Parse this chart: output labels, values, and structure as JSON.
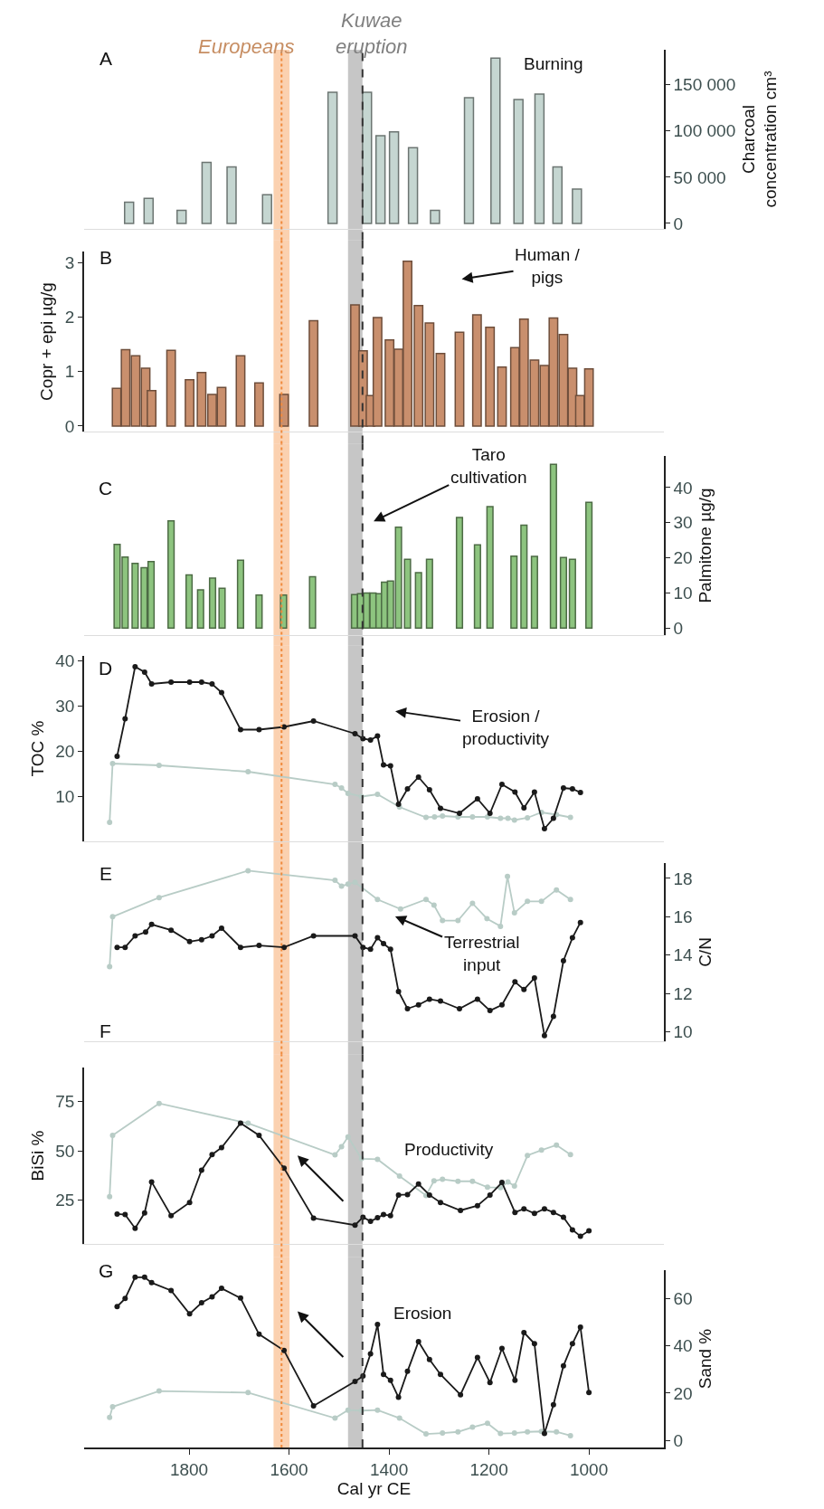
{
  "chart_data": [
    {
      "type": "bar",
      "ylabel": null,
      "y2label": "Charcoal\nconcentration cm³",
      "xlim": [
        2010,
        850
      ],
      "xticks": [
        1800,
        1600,
        1400,
        1200,
        1000
      ],
      "tick_labels": "y",
      "y2lim": [
        -6000,
        188000
      ],
      "y2ticks": [
        0,
        {
          "value": 50000,
          "label": "50 000"
        },
        {
          "value": 100000,
          "label": "100 000"
        },
        {
          "value": 150000,
          "label": "150 000"
        }
      ],
      "series": [
        {
          "axis": "y2",
          "color": "#c5d6d1",
          "x": [
            1920,
            1881,
            1815,
            1765,
            1715,
            1644,
            1513,
            1444,
            1417,
            1390,
            1352,
            1308,
            1240,
            1187,
            1141,
            1099,
            1063,
            1024
          ],
          "values": [
            23000,
            27000,
            14000,
            66000,
            61000,
            31000,
            142000,
            142000,
            95000,
            99000,
            82000,
            14000,
            136000,
            179000,
            134000,
            140000,
            61000,
            37000
          ]
        }
      ],
      "annotations": [
        "A",
        "Burning"
      ],
      "bands": [
        {
          "axis": "x",
          "from": 1631,
          "to": 1599,
          "color": "#f9b27c",
          "label": "Europeans"
        },
        {
          "axis": "x",
          "from": 1482,
          "to": 1453,
          "color": "#a0a0a0",
          "label": "Kuwae\neruption"
        }
      ],
      "ref_lines": [
        {
          "axis": "x",
          "value": 1615,
          "color": "#f08a3c",
          "line_style": "dotted"
        },
        {
          "axis": "x",
          "value": 1453,
          "color": "#333333",
          "line_style": "dashed"
        }
      ]
    },
    {
      "type": "bar",
      "ylabel": "Copr + epi µg/g",
      "xlim": [
        2010,
        850
      ],
      "xticks": [
        1800,
        1600,
        1400,
        1200,
        1000
      ],
      "tick_labels": "y",
      "ylim": [
        -0.1,
        3.2
      ],
      "yticks": [
        0,
        1,
        2,
        3
      ],
      "series": [
        {
          "color": "#c98f6d",
          "x": [
            1945,
            1927,
            1907,
            1887,
            1875,
            1836,
            1799,
            1775,
            1754,
            1735,
            1697,
            1660,
            1610,
            1551,
            1468,
            1452,
            1437,
            1423,
            1399,
            1381,
            1363,
            1341,
            1319,
            1297,
            1259,
            1224,
            1198,
            1174,
            1148,
            1130,
            1109,
            1089,
            1071,
            1051,
            1033,
            1018,
            1000
          ],
          "values": [
            0.69,
            1.4,
            1.29,
            1.06,
            0.65,
            1.39,
            0.85,
            0.98,
            0.58,
            0.71,
            1.29,
            0.79,
            0.58,
            1.93,
            2.22,
            1.38,
            0.56,
            1.99,
            1.58,
            1.41,
            3.02,
            2.21,
            1.89,
            1.33,
            1.72,
            2.04,
            1.81,
            1.08,
            1.44,
            1.96,
            1.21,
            1.11,
            1.98,
            1.68,
            1.06,
            0.56,
            1.05
          ]
        }
      ],
      "annotations": [
        "B",
        "Human /\npigs"
      ],
      "bands": [
        {
          "axis": "x",
          "from": 1631,
          "to": 1599,
          "color": "#f9b27c"
        },
        {
          "axis": "x",
          "from": 1482,
          "to": 1453,
          "color": "#a0a0a0"
        }
      ],
      "ref_lines": [
        {
          "axis": "x",
          "value": 1615,
          "color": "#f08a3c",
          "line_style": "dotted"
        },
        {
          "axis": "x",
          "value": 1453,
          "color": "#333333",
          "line_style": "dashed"
        }
      ]
    },
    {
      "type": "bar",
      "y2label": "Palmitone µg/g",
      "xlim": [
        2010,
        850
      ],
      "xticks": [
        1800,
        1600,
        1400,
        1200,
        1000
      ],
      "tick_labels": "y",
      "y2lim": [
        -2,
        49
      ],
      "y2ticks": [
        0,
        10,
        20,
        30,
        40
      ],
      "series": [
        {
          "axis": "y2",
          "color": "#8dc47f",
          "x": [
            1944,
            1928,
            1908,
            1890,
            1876,
            1836,
            1800,
            1777,
            1753,
            1734,
            1697,
            1660,
            1611,
            1553,
            1469,
            1457,
            1445,
            1432,
            1420,
            1409,
            1397,
            1381,
            1363,
            1341,
            1319,
            1259,
            1223,
            1198,
            1150,
            1130,
            1109,
            1071,
            1051,
            1033,
            1000
          ],
          "values": [
            23.8,
            20.2,
            18.4,
            17.2,
            18.9,
            30.5,
            15.1,
            10.9,
            14.2,
            11.3,
            19.3,
            9.4,
            9.4,
            14.6,
            9.5,
            9.8,
            10.0,
            10.0,
            9.8,
            13.1,
            13.4,
            28.7,
            19.6,
            15.8,
            19.6,
            31.5,
            23.7,
            34.6,
            20.5,
            29.3,
            20.4,
            46.6,
            20.1,
            19.6,
            35.8
          ]
        }
      ],
      "annotations": [
        "C",
        "Taro\ncultivation"
      ],
      "bands": [
        {
          "axis": "x",
          "from": 1631,
          "to": 1599,
          "color": "#f9b27c"
        },
        {
          "axis": "x",
          "from": 1482,
          "to": 1453,
          "color": "#a0a0a0"
        }
      ],
      "ref_lines": [
        {
          "axis": "x",
          "value": 1615,
          "color": "#f08a3c",
          "line_style": "dotted"
        },
        {
          "axis": "x",
          "value": 1453,
          "color": "#333333",
          "line_style": "dashed"
        }
      ]
    },
    {
      "type": "line",
      "ylabel": "TOC %",
      "xlim": [
        2010,
        850
      ],
      "xticks": [
        1800,
        1600,
        1400,
        1200,
        1000
      ],
      "tick_labels": "y",
      "ylim": [
        0,
        41
      ],
      "yticks": [
        10,
        20,
        30,
        40
      ],
      "marker": "circle",
      "series": [
        {
          "color": "#b8ccc6",
          "x": [
            1959,
            1953,
            1860,
            1682,
            1508,
            1495,
            1482,
            1455,
            1423,
            1379,
            1326,
            1309,
            1293,
            1262,
            1233,
            1203,
            1177,
            1162,
            1149,
            1123,
            1095,
            1065,
            1037
          ],
          "values": [
            4.2,
            17.2,
            16.8,
            15.4,
            12.6,
            11.8,
            10.6,
            9.9,
            10.4,
            7.6,
            5.3,
            5.4,
            5.6,
            5.4,
            5.4,
            5.4,
            5.1,
            5.1,
            4.7,
            5.2,
            6.4,
            5.9,
            5.3
          ]
        },
        {
          "color": "#1a1a1a",
          "x": [
            1944,
            1928,
            1908,
            1889,
            1875,
            1836,
            1799,
            1775,
            1754,
            1735,
            1697,
            1660,
            1610,
            1551,
            1468,
            1452,
            1437,
            1423,
            1411,
            1397,
            1381,
            1363,
            1341,
            1319,
            1297,
            1259,
            1223,
            1198,
            1174,
            1148,
            1130,
            1109,
            1089,
            1071,
            1051,
            1033,
            1017
          ],
          "values": [
            18.8,
            27.1,
            38.6,
            37.4,
            34.8,
            35.2,
            35.2,
            35.2,
            34.8,
            32.9,
            24.7,
            24.7,
            25.3,
            26.6,
            23.8,
            22.7,
            22.4,
            23.3,
            16.9,
            16.7,
            8.2,
            11.6,
            14.2,
            11.4,
            7.3,
            6.2,
            9.4,
            6.2,
            12.6,
            10.9,
            7.4,
            10.9,
            2.8,
            5.1,
            11.8,
            11.6,
            10.8
          ]
        }
      ],
      "annotations": [
        "D",
        "Erosion /\nproductivity"
      ],
      "bands": [
        {
          "axis": "x",
          "from": 1631,
          "to": 1599,
          "color": "#f9b27c"
        },
        {
          "axis": "x",
          "from": 1482,
          "to": 1453,
          "color": "#a0a0a0"
        }
      ],
      "ref_lines": [
        {
          "axis": "x",
          "value": 1615,
          "color": "#f08a3c",
          "line_style": "dotted"
        },
        {
          "axis": "x",
          "value": 1453,
          "color": "#333333",
          "line_style": "dashed"
        }
      ]
    },
    {
      "type": "line",
      "y2label": "C/N",
      "xlim": [
        2010,
        850
      ],
      "xticks": [
        1800,
        1600,
        1400,
        1200,
        1000
      ],
      "tick_labels": "y",
      "y2lim": [
        9.5,
        18.8
      ],
      "y2ticks": [
        10,
        12,
        14,
        16,
        18
      ],
      "marker": "circle",
      "series": [
        {
          "axis": "y2",
          "color": "#b8ccc6",
          "x": [
            1959,
            1953,
            1860,
            1682,
            1508,
            1495,
            1482,
            1468,
            1423,
            1377,
            1326,
            1310,
            1293,
            1262,
            1233,
            1204,
            1177,
            1163,
            1149,
            1123,
            1095,
            1065,
            1037
          ],
          "values": [
            13.4,
            16.0,
            17.0,
            18.4,
            17.9,
            17.6,
            17.7,
            17.8,
            16.9,
            16.4,
            16.9,
            16.6,
            15.8,
            15.8,
            16.7,
            15.9,
            15.5,
            18.1,
            16.2,
            16.8,
            16.8,
            17.4,
            16.9
          ]
        },
        {
          "axis": "y2",
          "color": "#1a1a1a",
          "x": [
            1944,
            1928,
            1908,
            1887,
            1875,
            1836,
            1799,
            1775,
            1754,
            1735,
            1697,
            1660,
            1610,
            1551,
            1468,
            1452,
            1437,
            1423,
            1411,
            1397,
            1381,
            1363,
            1341,
            1319,
            1297,
            1259,
            1223,
            1198,
            1174,
            1148,
            1130,
            1109,
            1089,
            1071,
            1051,
            1033,
            1017
          ],
          "values": [
            14.4,
            14.4,
            15.0,
            15.2,
            15.6,
            15.3,
            14.7,
            14.8,
            15.0,
            15.4,
            14.4,
            14.5,
            14.4,
            15.0,
            15.0,
            14.4,
            14.3,
            14.9,
            14.6,
            14.3,
            12.1,
            11.2,
            11.4,
            11.7,
            11.6,
            11.2,
            11.7,
            11.1,
            11.4,
            12.6,
            12.2,
            12.8,
            9.8,
            10.8,
            13.7,
            14.9,
            15.7
          ]
        }
      ],
      "annotations": [
        "E",
        "Terrestrial\ninput"
      ],
      "bands": [
        {
          "axis": "x",
          "from": 1631,
          "to": 1599,
          "color": "#f9b27c"
        },
        {
          "axis": "x",
          "from": 1482,
          "to": 1453,
          "color": "#a0a0a0"
        }
      ],
      "ref_lines": [
        {
          "axis": "x",
          "value": 1615,
          "color": "#f08a3c",
          "line_style": "dotted"
        },
        {
          "axis": "x",
          "value": 1453,
          "color": "#333333",
          "line_style": "dashed"
        }
      ]
    },
    {
      "type": "line",
      "ylabel": "BiSi %",
      "xlim": [
        2010,
        850
      ],
      "xticks": [
        1800,
        1600,
        1400,
        1200,
        1000
      ],
      "tick_labels": "y",
      "ylim": [
        3,
        92
      ],
      "yticks": [
        25,
        50,
        75
      ],
      "marker": "circle",
      "series": [
        {
          "color": "#b8ccc6",
          "x": [
            1959,
            1953,
            1860,
            1682,
            1508,
            1495,
            1482,
            1455,
            1423,
            1379,
            1326,
            1310,
            1293,
            1262,
            1233,
            1203,
            1177,
            1162,
            1149,
            1123,
            1095,
            1065,
            1037
          ],
          "values": [
            26.9,
            57.8,
            73.9,
            63.9,
            47.9,
            52.1,
            57.0,
            46.0,
            45.7,
            37.2,
            27.4,
            34.8,
            35.6,
            34.6,
            34.6,
            31.6,
            31.4,
            34.3,
            32.2,
            47.6,
            50.3,
            52.9,
            48.1
          ]
        },
        {
          "color": "#1a1a1a",
          "x": [
            1944,
            1928,
            1908,
            1889,
            1875,
            1836,
            1799,
            1775,
            1754,
            1735,
            1697,
            1660,
            1610,
            1551,
            1468,
            1452,
            1437,
            1423,
            1411,
            1397,
            1381,
            1363,
            1341,
            1319,
            1297,
            1257,
            1223,
            1198,
            1174,
            1148,
            1130,
            1109,
            1089,
            1071,
            1051,
            1033,
            1017,
            1000
          ],
          "values": [
            18.1,
            17.8,
            10.9,
            18.6,
            34.3,
            17.3,
            23.9,
            40.2,
            48.1,
            51.6,
            63.9,
            57.8,
            41.2,
            16.0,
            12.5,
            16.5,
            14.4,
            16.2,
            17.8,
            17.3,
            27.7,
            27.9,
            33.2,
            27.7,
            23.9,
            19.9,
            22.3,
            27.7,
            34.0,
            18.9,
            20.7,
            18.4,
            20.7,
            18.9,
            16.5,
            10.1,
            6.9,
            9.6
          ]
        }
      ],
      "annotations": [
        "F",
        "Productivity"
      ],
      "bands": [
        {
          "axis": "x",
          "from": 1631,
          "to": 1599,
          "color": "#f9b27c"
        },
        {
          "axis": "x",
          "from": 1482,
          "to": 1453,
          "color": "#a0a0a0"
        }
      ],
      "ref_lines": [
        {
          "axis": "x",
          "value": 1615,
          "color": "#f08a3c",
          "line_style": "dotted"
        },
        {
          "axis": "x",
          "value": 1453,
          "color": "#333333",
          "line_style": "dashed"
        }
      ]
    },
    {
      "type": "line",
      "y2label": "Sand %",
      "xlabel": "Cal yr CE",
      "xlim": [
        2010,
        850
      ],
      "xticks": [
        1800,
        1600,
        1400,
        1200,
        1000
      ],
      "y2lim": [
        -3,
        72
      ],
      "y2ticks": [
        0,
        20,
        40,
        60
      ],
      "marker": "circle",
      "series": [
        {
          "axis": "y2",
          "color": "#b8ccc6",
          "x": [
            1959,
            1953,
            1860,
            1682,
            1508,
            1482,
            1455,
            1423,
            1379,
            1326,
            1293,
            1262,
            1233,
            1203,
            1177,
            1149,
            1123,
            1095,
            1065,
            1037
          ],
          "values": [
            9.7,
            14.2,
            20.9,
            20.2,
            9.4,
            12.8,
            12.6,
            12.8,
            9.4,
            2.7,
            3.1,
            3.6,
            5.6,
            7.2,
            2.9,
            3.1,
            3.6,
            3.8,
            3.6,
            2.0
          ]
        },
        {
          "axis": "y2",
          "color": "#1a1a1a",
          "x": [
            1944,
            1928,
            1908,
            1889,
            1875,
            1836,
            1799,
            1775,
            1754,
            1735,
            1697,
            1660,
            1610,
            1551,
            1468,
            1452,
            1437,
            1423,
            1411,
            1397,
            1381,
            1363,
            1341,
            1319,
            1297,
            1257,
            1223,
            1198,
            1174,
            1148,
            1130,
            1109,
            1089,
            1071,
            1051,
            1033,
            1017,
            1000
          ],
          "values": [
            56.6,
            60.0,
            69.0,
            69.0,
            66.7,
            63.4,
            53.5,
            58.2,
            60.7,
            64.3,
            60.2,
            44.9,
            38.0,
            14.6,
            24.9,
            27.2,
            36.6,
            49.0,
            27.9,
            25.4,
            18.2,
            29.2,
            41.8,
            34.2,
            27.9,
            19.3,
            35.1,
            24.5,
            38.9,
            25.4,
            45.6,
            40.9,
            2.9,
            15.1,
            31.5,
            40.9,
            47.9,
            20.2
          ]
        }
      ],
      "annotations": [
        "G",
        "Erosion"
      ],
      "bands": [
        {
          "axis": "x",
          "from": 1631,
          "to": 1599,
          "color": "#f9b27c"
        },
        {
          "axis": "x",
          "from": 1482,
          "to": 1453,
          "color": "#a0a0a0"
        }
      ],
      "ref_lines": [
        {
          "axis": "x",
          "value": 1615,
          "color": "#f08a3c",
          "line_style": "dotted"
        },
        {
          "axis": "x",
          "value": 1453,
          "color": "#333333",
          "line_style": "dashed"
        }
      ]
    }
  ]
}
